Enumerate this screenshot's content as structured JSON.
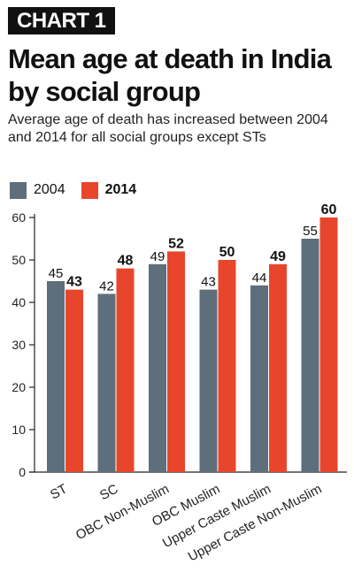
{
  "header": {
    "tag": "CHART 1",
    "title": "Mean age at death in India by social group",
    "subtitle": "Average age of death has increased between 2004 and 2014 for all social groups except STs"
  },
  "colors": {
    "series_2004": "#5e6e7a",
    "series_2014": "#e8462c"
  },
  "chart_data": {
    "type": "bar",
    "categories": [
      "ST",
      "SC",
      "OBC Non-Muslim",
      "OBC Muslim",
      "Upper Caste Muslim",
      "Upper Caste Non-Muslim"
    ],
    "series": [
      {
        "name": "2004",
        "values": [
          45,
          42,
          49,
          43,
          44,
          55
        ]
      },
      {
        "name": "2014",
        "values": [
          43,
          48,
          52,
          50,
          49,
          60
        ]
      }
    ],
    "yticks": [
      0,
      10,
      20,
      30,
      40,
      50,
      60
    ],
    "ylim": [
      0,
      60
    ],
    "grid": false,
    "legend": "top-left"
  }
}
